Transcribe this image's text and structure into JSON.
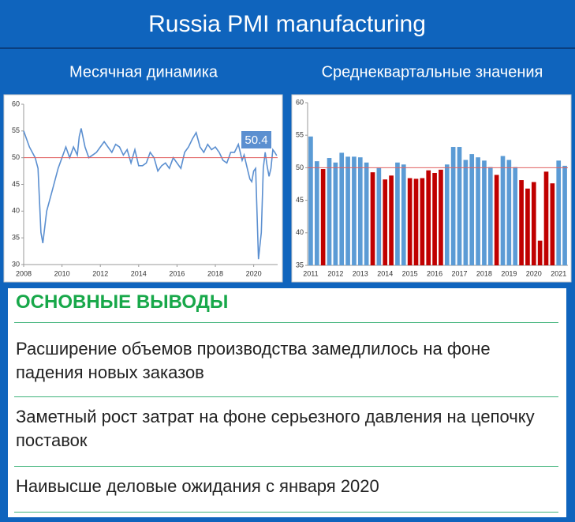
{
  "header": {
    "title": "Russia PMI manufacturing",
    "subtitles": [
      "Месячная динамика",
      "Среднеквартальные значения"
    ]
  },
  "chart_data": [
    {
      "type": "line",
      "x": [
        2008.0,
        2008.3,
        2008.6,
        2008.75,
        2008.9,
        2009.0,
        2009.2,
        2009.5,
        2009.8,
        2010.0,
        2010.2,
        2010.4,
        2010.6,
        2010.8,
        2010.9,
        2011.0,
        2011.2,
        2011.4,
        2011.6,
        2011.8,
        2012.0,
        2012.2,
        2012.4,
        2012.6,
        2012.8,
        2013.0,
        2013.2,
        2013.4,
        2013.6,
        2013.8,
        2014.0,
        2014.2,
        2014.4,
        2014.6,
        2014.8,
        2015.0,
        2015.2,
        2015.4,
        2015.6,
        2015.8,
        2016.0,
        2016.2,
        2016.4,
        2016.6,
        2016.8,
        2017.0,
        2017.2,
        2017.4,
        2017.6,
        2017.8,
        2018.0,
        2018.2,
        2018.4,
        2018.6,
        2018.8,
        2019.0,
        2019.2,
        2019.4,
        2019.5,
        2019.6,
        2019.7,
        2019.8,
        2019.9,
        2020.0,
        2020.1,
        2020.25,
        2020.4,
        2020.5,
        2020.6,
        2020.7,
        2020.8,
        2020.9,
        2021.0,
        2021.1,
        2021.2
      ],
      "values": [
        55,
        52,
        50,
        48,
        36,
        34,
        40,
        44,
        48,
        50,
        52,
        50,
        52,
        50.5,
        54,
        55.5,
        52,
        50,
        50.5,
        51,
        52,
        53,
        52,
        51,
        52.5,
        52,
        50.5,
        51.5,
        49,
        51.5,
        48.5,
        48.5,
        49,
        51,
        50,
        47.5,
        48.5,
        49,
        48,
        50,
        49,
        48,
        51,
        52,
        53.5,
        54.7,
        52,
        51,
        52.5,
        51.5,
        52,
        51,
        49.5,
        49,
        51,
        51,
        52.5,
        49.5,
        50.5,
        49,
        47.5,
        46,
        45.5,
        47.5,
        48,
        31,
        36,
        48,
        51,
        48.5,
        46.5,
        48,
        51.5,
        51,
        50.4
      ],
      "color": "#5b8fd0",
      "reference_line": 50,
      "reference_color": "#e06060",
      "xlim": [
        2008,
        2021.25
      ],
      "xticks": [
        2008,
        2010,
        2012,
        2014,
        2016,
        2018,
        2020
      ],
      "ylim": [
        30,
        60
      ],
      "yticks": [
        30,
        35,
        40,
        45,
        50,
        55,
        60
      ]
    },
    {
      "type": "bar",
      "categories": [
        "2011",
        null,
        null,
        null,
        "2012",
        null,
        null,
        null,
        "2013",
        null,
        null,
        null,
        "2014",
        null,
        null,
        null,
        "2015",
        null,
        null,
        null,
        "2016",
        null,
        null,
        null,
        "2017",
        null,
        null,
        null,
        "2018",
        null,
        null,
        null,
        "2019",
        null,
        null,
        null,
        "2020",
        null,
        null,
        null,
        "2021",
        null
      ],
      "values": [
        54.8,
        51,
        49.8,
        51.5,
        50.8,
        52.3,
        51.7,
        51.7,
        51.6,
        50.8,
        49.3,
        50,
        48.2,
        48.8,
        50.8,
        50.5,
        48.4,
        48.3,
        48.4,
        49.6,
        49.2,
        49.7,
        50.5,
        53.2,
        53.2,
        51.2,
        52.1,
        51.6,
        51.1,
        50.1,
        48.9,
        51.8,
        51.2,
        50.1,
        48.1,
        46.8,
        47.8,
        38.8,
        49.4,
        47.6,
        51.1,
        50.3
      ],
      "color": "#5b9bd5",
      "below_color": "#c00000",
      "reference_line": 50,
      "reference_color": "#e06060",
      "ylim": [
        35,
        60
      ],
      "yticks": [
        35,
        40,
        45,
        50,
        55,
        60
      ]
    }
  ],
  "conclusions": {
    "heading": "ОСНОВНЫЕ ВЫВОДЫ",
    "items": [
      "Расширение объемов производства замедлилось на фоне падения новых заказов",
      "Заметный рост затрат на фоне серьезного давления на цепочку поставок",
      "Наивысше деловые ожидания с января 2020"
    ]
  }
}
